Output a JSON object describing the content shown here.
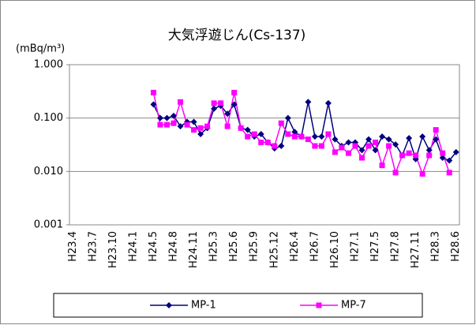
{
  "chart_data": {
    "type": "line",
    "title": "大気浮遊じん(Cs-137)",
    "y_label": "(mBq/m³)",
    "log_scale": true,
    "grid": true,
    "legend": "bottom",
    "ylim": [
      0.001,
      1
    ],
    "yticks": [
      {
        "value": 1,
        "label": "1.000"
      },
      {
        "value": 0.1,
        "label": "0.100"
      },
      {
        "value": 0.01,
        "label": "0.010"
      },
      {
        "value": 0.001,
        "label": "0.001"
      }
    ],
    "categories": [
      "H23.4",
      null,
      null,
      "H23.7",
      null,
      null,
      "H23.10",
      null,
      null,
      "H24.1",
      null,
      null,
      "H24.5",
      null,
      null,
      "H24.8",
      null,
      null,
      "H24.11",
      null,
      null,
      "H25.3",
      null,
      null,
      "H25.6",
      null,
      null,
      "H25.9",
      null,
      null,
      "H25.12",
      null,
      null,
      "H26.4",
      null,
      null,
      "H26.7",
      null,
      null,
      "H26.10",
      null,
      null,
      "H27.1",
      null,
      null,
      "H27.5",
      null,
      null,
      "H27.8",
      null,
      null,
      "H27.11",
      null,
      null,
      "H28.3",
      null,
      null,
      "H28.6"
    ],
    "series": [
      {
        "name": "MP-1",
        "color": "#000080",
        "marker": "diamond",
        "values": [
          null,
          null,
          null,
          null,
          null,
          null,
          null,
          null,
          null,
          null,
          null,
          null,
          0.18,
          0.1,
          0.1,
          0.11,
          0.07,
          0.085,
          0.085,
          0.05,
          0.065,
          0.15,
          0.17,
          0.12,
          0.18,
          0.065,
          0.06,
          0.045,
          0.05,
          0.035,
          0.027,
          0.03,
          0.1,
          0.055,
          0.045,
          0.2,
          0.045,
          0.045,
          0.19,
          0.04,
          0.03,
          0.035,
          0.035,
          0.025,
          0.04,
          0.025,
          0.045,
          0.04,
          0.032,
          0.02,
          0.042,
          0.017,
          0.045,
          0.025,
          0.04,
          0.018,
          0.016,
          0.023
        ]
      },
      {
        "name": "MP-7",
        "color": "#ff00ff",
        "marker": "square",
        "values": [
          null,
          null,
          null,
          null,
          null,
          null,
          null,
          null,
          null,
          null,
          null,
          null,
          0.3,
          0.075,
          0.075,
          0.08,
          0.2,
          0.075,
          0.06,
          0.065,
          0.07,
          0.19,
          0.19,
          0.07,
          0.3,
          0.065,
          0.045,
          0.05,
          0.035,
          0.035,
          0.03,
          0.08,
          0.05,
          0.045,
          0.045,
          0.04,
          0.03,
          0.03,
          0.05,
          0.023,
          0.028,
          0.022,
          0.03,
          0.018,
          0.03,
          0.035,
          0.013,
          0.03,
          0.0095,
          0.02,
          0.022,
          0.02,
          0.009,
          0.02,
          0.06,
          0.022,
          0.0095,
          null
        ]
      }
    ]
  }
}
